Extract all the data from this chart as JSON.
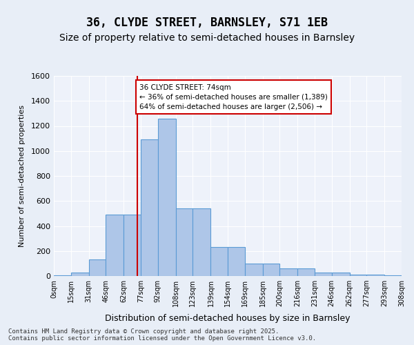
{
  "title1": "36, CLYDE STREET, BARNSLEY, S71 1EB",
  "title2": "Size of property relative to semi-detached houses in Barnsley",
  "xlabel": "Distribution of semi-detached houses by size in Barnsley",
  "ylabel": "Number of semi-detached properties",
  "bin_labels": [
    "0sqm",
    "15sqm",
    "31sqm",
    "46sqm",
    "62sqm",
    "77sqm",
    "92sqm",
    "108sqm",
    "123sqm",
    "139sqm",
    "154sqm",
    "169sqm",
    "185sqm",
    "200sqm",
    "216sqm",
    "231sqm",
    "246sqm",
    "262sqm",
    "277sqm",
    "293sqm",
    "308sqm"
  ],
  "bin_edges": [
    0,
    15,
    31,
    46,
    62,
    77,
    92,
    108,
    123,
    139,
    154,
    169,
    185,
    200,
    216,
    231,
    246,
    262,
    277,
    293,
    308
  ],
  "bar_heights": [
    5,
    30,
    130,
    490,
    490,
    1090,
    1260,
    540,
    540,
    230,
    230,
    100,
    100,
    60,
    60,
    25,
    25,
    10,
    10,
    5
  ],
  "bar_color": "#aec6e8",
  "bar_edge_color": "#5b9bd5",
  "property_size": 74,
  "vline_color": "#cc0000",
  "annotation_text": "36 CLYDE STREET: 74sqm\n← 36% of semi-detached houses are smaller (1,389)\n64% of semi-detached houses are larger (2,506) →",
  "annotation_box_color": "#ffffff",
  "annotation_box_edge": "#cc0000",
  "ylim": [
    0,
    1600
  ],
  "yticks": [
    0,
    200,
    400,
    600,
    800,
    1000,
    1200,
    1400,
    1600
  ],
  "footer": "Contains HM Land Registry data © Crown copyright and database right 2025.\nContains public sector information licensed under the Open Government Licence v3.0.",
  "bg_color": "#e8eef7",
  "plot_bg_color": "#eef2fa",
  "grid_color": "#ffffff",
  "title1_fontsize": 12,
  "title2_fontsize": 10
}
